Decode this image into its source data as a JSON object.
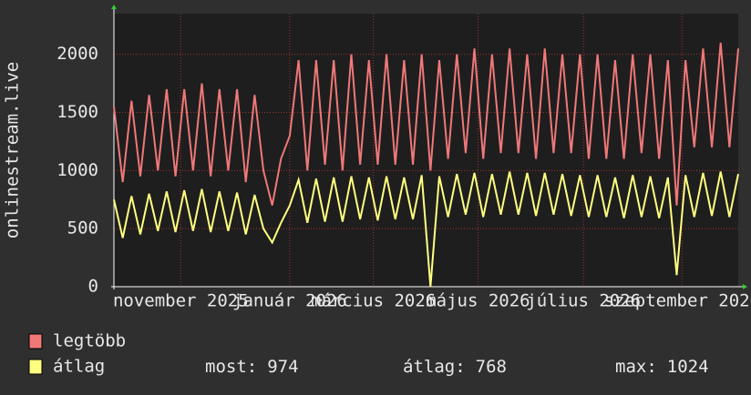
{
  "chart_data": {
    "type": "line",
    "y_label": "onlinestream.live",
    "ylim": [
      0,
      2350
    ],
    "yticks": [
      0,
      500,
      1000,
      1500,
      2000
    ],
    "xlim": [
      0,
      71
    ],
    "xticks": [
      {
        "value": 7.6,
        "label": "november 2025"
      },
      {
        "value": 20,
        "label": "január 2026"
      },
      {
        "value": 29.5,
        "label": "március 2026"
      },
      {
        "value": 41.4,
        "label": "május 2026"
      },
      {
        "value": 53.4,
        "label": "július 2026"
      },
      {
        "value": 64.6,
        "label": "szeptember 2026"
      }
    ],
    "grid": true,
    "series": [
      {
        "name": "legtöbb",
        "color": "#f07878",
        "values": [
          1550,
          900,
          1600,
          950,
          1650,
          1000,
          1700,
          950,
          1700,
          1000,
          1750,
          950,
          1700,
          1000,
          1700,
          900,
          1650,
          1000,
          700,
          1100,
          1300,
          1950,
          1000,
          1950,
          1050,
          1950,
          1000,
          2000,
          1050,
          1950,
          1050,
          2000,
          1050,
          1950,
          1050,
          2000,
          1000,
          1950,
          1100,
          2000,
          1150,
          2050,
          1100,
          2000,
          1150,
          2050,
          1150,
          2000,
          1100,
          2050,
          1150,
          2000,
          1150,
          2000,
          1100,
          2000,
          1100,
          1950,
          1100,
          2000,
          1150,
          2000,
          1100,
          1950,
          700,
          1950,
          1200,
          2050,
          1200,
          2100,
          1200,
          2050
        ]
      },
      {
        "name": "átlag",
        "color": "#ffff80",
        "values": [
          750,
          420,
          780,
          450,
          800,
          480,
          820,
          470,
          830,
          480,
          840,
          470,
          820,
          480,
          810,
          450,
          790,
          500,
          380,
          550,
          700,
          920,
          550,
          930,
          560,
          940,
          560,
          950,
          580,
          940,
          570,
          950,
          580,
          940,
          580,
          960,
          0,
          950,
          600,
          970,
          620,
          980,
          600,
          970,
          620,
          990,
          620,
          980,
          610,
          980,
          620,
          970,
          610,
          960,
          600,
          960,
          600,
          940,
          590,
          960,
          600,
          950,
          590,
          940,
          100,
          960,
          600,
          980,
          610,
          990,
          600,
          970
        ]
      }
    ],
    "stats": [
      {
        "label": "most:",
        "value": 974
      },
      {
        "label": "átlag:",
        "value": 768
      },
      {
        "label": "max:",
        "value": 1024
      }
    ]
  }
}
